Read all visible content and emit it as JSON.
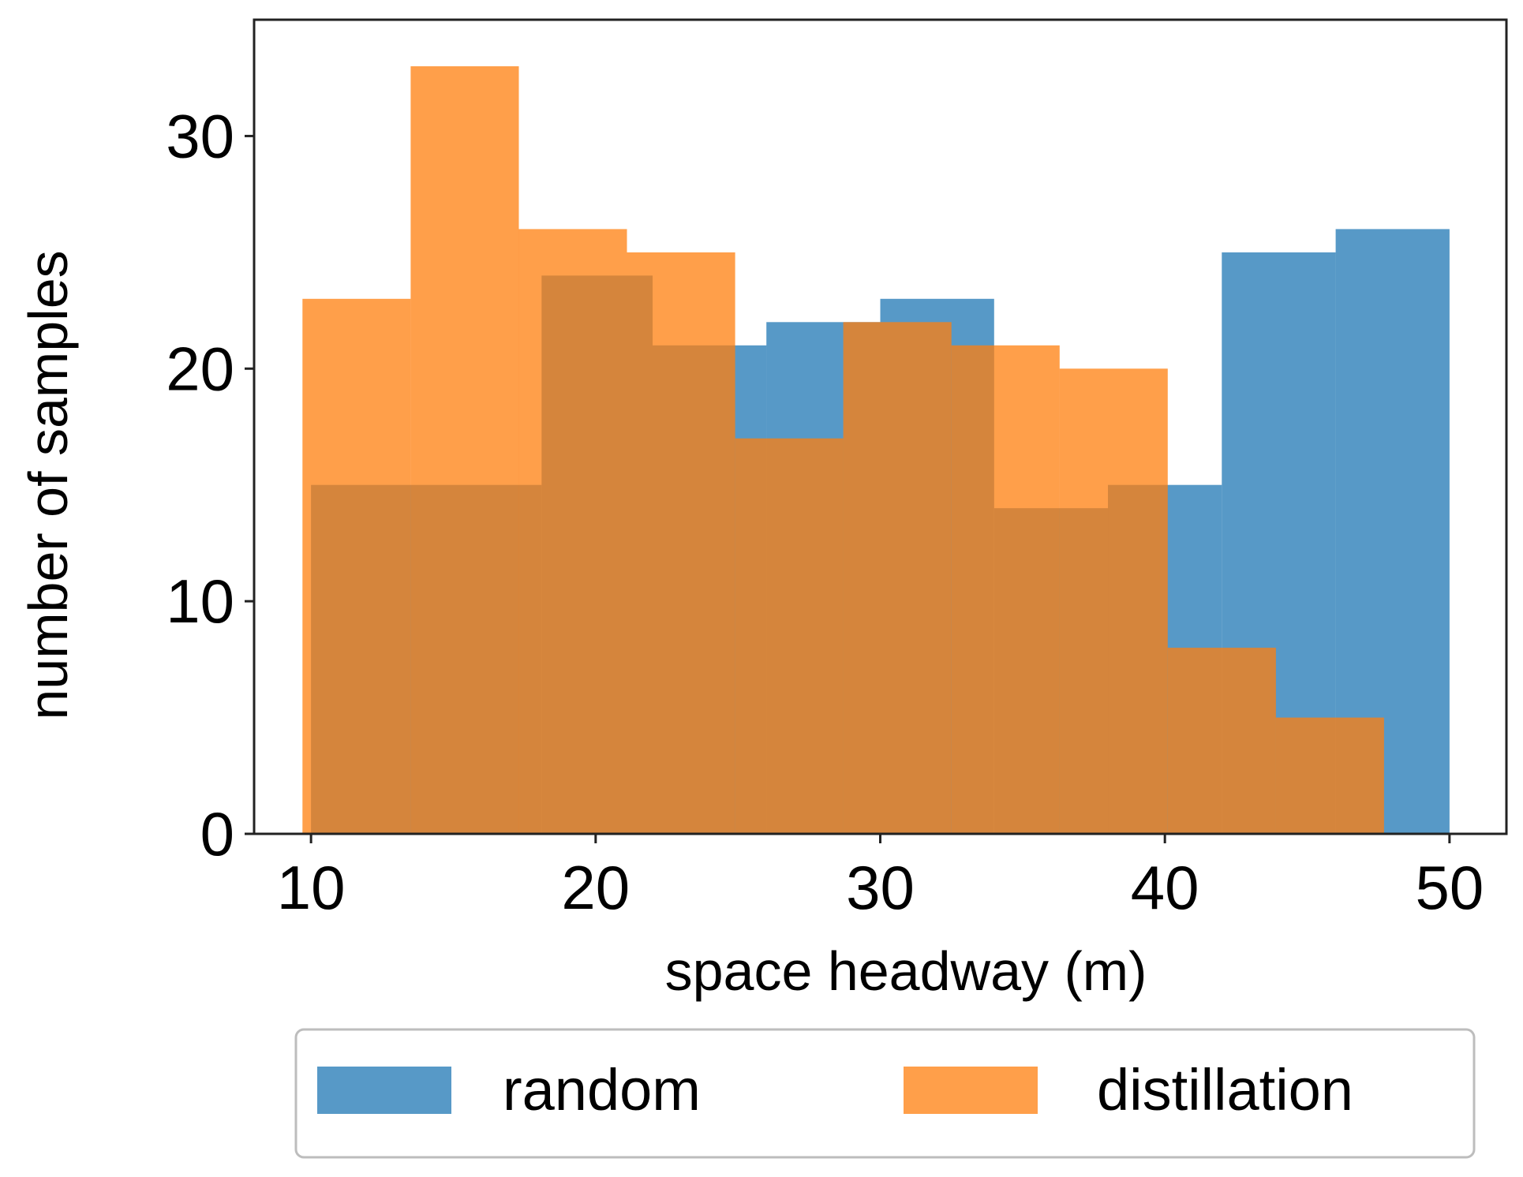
{
  "chart_data": {
    "type": "histogram",
    "title": "",
    "xlabel": "space headway (m)",
    "ylabel": "number of samples",
    "xlim": [
      8,
      52
    ],
    "ylim": [
      0,
      35
    ],
    "xticks": [
      10,
      20,
      30,
      40,
      50
    ],
    "yticks": [
      0,
      10,
      20,
      30
    ],
    "grid": false,
    "legend_position": "bottom",
    "bin_edges": [
      9.7,
      13.5,
      17.3,
      21.1,
      24.9,
      28.7,
      32.5,
      36.3,
      40.1,
      43.9,
      47.7,
      51.5
    ],
    "series": [
      {
        "name": "random",
        "color": "#1f77b4",
        "bins": [
          {
            "x0": 10.0,
            "x1": 18.1,
            "count": 15
          },
          {
            "x0": 18.1,
            "x1": 22.0,
            "count": 24
          },
          {
            "x0": 22.0,
            "x1": 26.0,
            "count": 21
          },
          {
            "x0": 26.0,
            "x1": 30.0,
            "count": 22
          },
          {
            "x0": 30.0,
            "x1": 34.0,
            "count": 23
          },
          {
            "x0": 34.0,
            "x1": 38.0,
            "count": 14
          },
          {
            "x0": 38.0,
            "x1": 42.0,
            "count": 15
          },
          {
            "x0": 42.0,
            "x1": 46.0,
            "count": 25
          },
          {
            "x0": 46.0,
            "x1": 50.0,
            "count": 26
          }
        ]
      },
      {
        "name": "distillation",
        "color": "#ff7f0e",
        "bins": [
          {
            "x0": 9.7,
            "x1": 13.5,
            "count": 23
          },
          {
            "x0": 13.5,
            "x1": 17.3,
            "count": 33
          },
          {
            "x0": 17.3,
            "x1": 21.1,
            "count": 26
          },
          {
            "x0": 21.1,
            "x1": 24.9,
            "count": 25
          },
          {
            "x0": 24.9,
            "x1": 28.7,
            "count": 17
          },
          {
            "x0": 28.7,
            "x1": 32.5,
            "count": 22
          },
          {
            "x0": 32.5,
            "x1": 36.3,
            "count": 21
          },
          {
            "x0": 36.3,
            "x1": 40.1,
            "count": 20
          },
          {
            "x0": 40.1,
            "x1": 43.9,
            "count": 8
          },
          {
            "x0": 43.9,
            "x1": 47.7,
            "count": 5
          }
        ]
      }
    ]
  }
}
